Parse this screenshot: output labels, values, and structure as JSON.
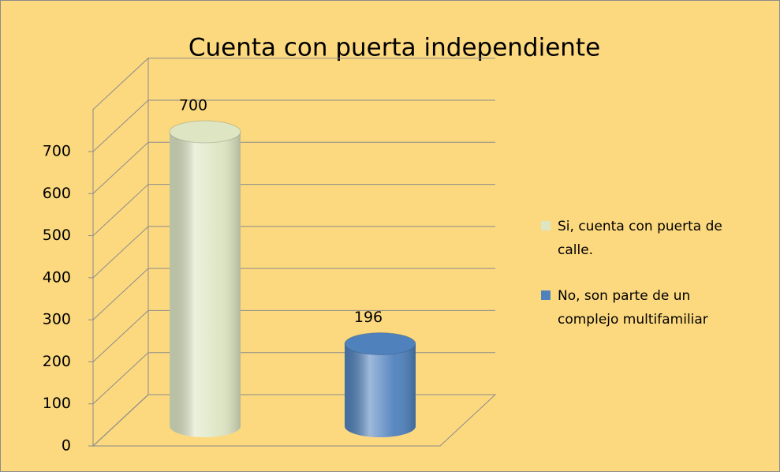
{
  "chart_data": {
    "type": "bar3d",
    "title": "Cuenta con puerta independiente",
    "categories": [
      null
    ],
    "series": [
      {
        "name": "Si, cuenta con puerta de calle.",
        "color": "#dde5c2",
        "values": [
          700
        ]
      },
      {
        "name": "No, son parte de un complejo multifamiliar",
        "color": "#4f81bd",
        "values": [
          196
        ]
      }
    ],
    "ylim": [
      0,
      800
    ],
    "yticks": [
      0,
      100,
      200,
      300,
      400,
      500,
      600,
      700
    ],
    "grid": true,
    "legend": "right"
  }
}
